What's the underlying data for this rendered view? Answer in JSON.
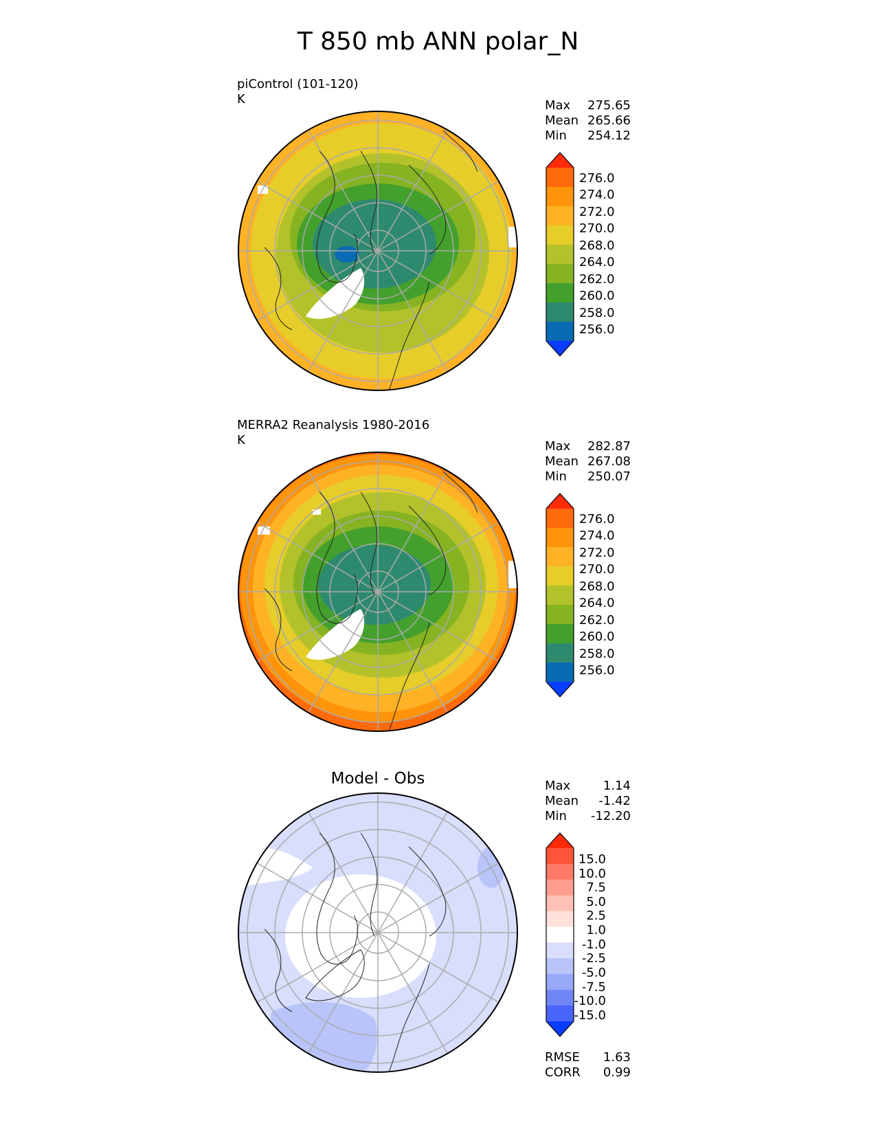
{
  "title": "T 850 mb ANN polar_N",
  "panels": {
    "test": {
      "label1": "piControl (101-120)",
      "label2": "K",
      "stats": [
        {
          "name": "Max",
          "value": "275.65"
        },
        {
          "name": "Mean",
          "value": "265.66"
        },
        {
          "name": "Min",
          "value": "254.12"
        }
      ]
    },
    "ref": {
      "label1": "MERRA2 Reanalysis 1980-2016",
      "label2": "K",
      "stats": [
        {
          "name": "Max",
          "value": "282.87"
        },
        {
          "name": "Mean",
          "value": "267.08"
        },
        {
          "name": "Min",
          "value": "250.07"
        }
      ]
    },
    "diff": {
      "title": "Model - Obs",
      "stats": [
        {
          "name": "Max",
          "value": "1.14"
        },
        {
          "name": "Mean",
          "value": "-1.42"
        },
        {
          "name": "Min",
          "value": "-12.20"
        }
      ],
      "metrics": [
        {
          "name": "RMSE",
          "value": "1.63"
        },
        {
          "name": "CORR",
          "value": "0.99"
        }
      ]
    }
  },
  "colorbars": {
    "abs": {
      "ticks": [
        "276.0",
        "274.0",
        "272.0",
        "270.0",
        "268.0",
        "264.0",
        "262.0",
        "260.0",
        "258.0",
        "256.0"
      ],
      "colors": [
        "#ff2a0a",
        "#ff6a0a",
        "#ff940a",
        "#ffb226",
        "#e6cd2a",
        "#b3c22a",
        "#86b322",
        "#44a02c",
        "#2e8a6e",
        "#0a6ab4",
        "#0a3cff"
      ]
    },
    "diff": {
      "ticks": [
        "15.0",
        "10.0",
        "7.5",
        "5.0",
        "2.5",
        "1.0",
        "-1.0",
        "-2.5",
        "-5.0",
        "-7.5",
        "-10.0",
        "-15.0"
      ],
      "colors": [
        "#ff2a0a",
        "#ff5438",
        "#ff7a66",
        "#ff9e90",
        "#ffc0b6",
        "#ffe0da",
        "#ffffff",
        "#d8defc",
        "#b8c4fa",
        "#97a8f8",
        "#6f86f6",
        "#4a63f8",
        "#0a3cff"
      ]
    }
  },
  "map_fields": {
    "test": [
      "#ff8a0a",
      "#ffb226",
      "#e6cd2a",
      "#b3c22a",
      "#86b322",
      "#44a02c",
      "#2e8a6e",
      "#0a6ab4"
    ],
    "ref": [
      "#ff3a0a",
      "#ff6a0a",
      "#ff940a",
      "#ffb226",
      "#e6cd2a",
      "#b3c22a",
      "#86b322",
      "#44a02c",
      "#2e8a6e"
    ],
    "diff": [
      "#d8defc",
      "#ffffff",
      "#b8c4fa"
    ]
  }
}
